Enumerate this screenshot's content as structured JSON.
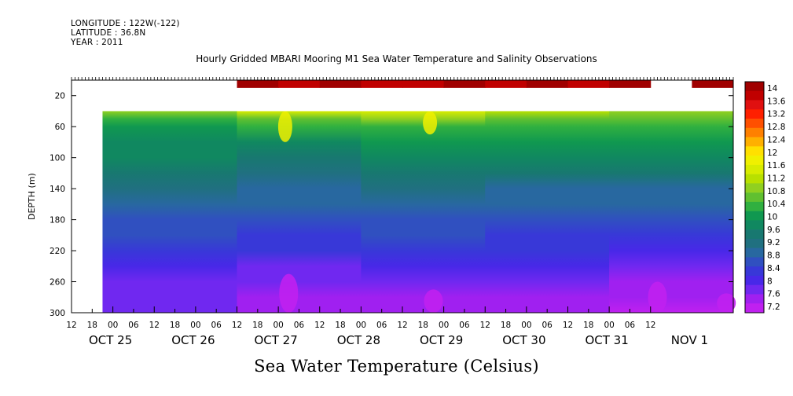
{
  "header": {
    "longitude": "LONGITUDE : 122W(-122)",
    "latitude": "LATITUDE : 36.8N",
    "year": "YEAR : 2011",
    "title": "Hourly Gridded MBARI Mooring M1 Sea Water Temperature and Salinity Observations",
    "bottom_title": "Sea Water Temperature (Celsius)"
  },
  "chart_data": {
    "type": "heatmap",
    "title": "Hourly Gridded MBARI Mooring M1 Sea Water Temperature and Salinity Observations",
    "ylabel": "DEPTH (m)",
    "xlabel": "",
    "colorbar_label": "Sea Water Temperature (Celsius)",
    "y_inverted": true,
    "ylim": [
      300,
      0
    ],
    "y_ticks": [
      20,
      60,
      100,
      140,
      180,
      220,
      260,
      300
    ],
    "hour_ticks": [
      "12",
      "18",
      "00",
      "06",
      "12",
      "18",
      "00",
      "06",
      "12",
      "18",
      "00",
      "06",
      "12",
      "18",
      "00",
      "06",
      "12",
      "18",
      "00",
      "06",
      "12",
      "18",
      "00",
      "06",
      "12",
      "18",
      "00",
      "06",
      "12"
    ],
    "date_labels": [
      "OCT 25",
      "OCT 26",
      "OCT 27",
      "OCT 28",
      "OCT 29",
      "OCT 30",
      "OCT 31",
      "NOV  1"
    ],
    "colorbar_ticks": [
      "14",
      "13.6",
      "13.2",
      "12.8",
      "12.4",
      "12",
      "11.6",
      "11.2",
      "10.8",
      "10.4",
      "10",
      "9.6",
      "9.2",
      "8.8",
      "8.4",
      "8",
      "7.6",
      "7.2"
    ],
    "colorbar_colors": [
      "#a00000",
      "#c00000",
      "#e01010",
      "#ff2000",
      "#ff5000",
      "#ff8000",
      "#ffb000",
      "#ffe000",
      "#f0f000",
      "#d8ec00",
      "#b8e000",
      "#90d020",
      "#60c030",
      "#30b040",
      "#109850",
      "#108860",
      "#187870",
      "#207080",
      "#2868a0",
      "#3050c0",
      "#3838d8",
      "#4828e8",
      "#7028f0",
      "#a020f0",
      "#c020f0"
    ],
    "x_range_hours": [
      -12,
      180
    ],
    "depth_levels": [
      10,
      40,
      50,
      60,
      80,
      100,
      120,
      140,
      160,
      180,
      200,
      220,
      240,
      260,
      280,
      300
    ],
    "surface_depth_range_m": [
      0,
      10
    ],
    "surface_series": {
      "hours": [
        36,
        48,
        60,
        72,
        84,
        96,
        108,
        120,
        132,
        144,
        156,
        168,
        180
      ],
      "temperature": [
        13.8,
        13.6,
        13.9,
        13.5,
        13.7,
        13.8,
        13.6,
        13.9,
        13.7,
        13.8,
        null,
        13.9,
        13.8
      ]
    },
    "deep_series": {
      "depth": [
        40,
        50,
        60,
        80,
        100,
        120,
        140,
        160,
        180,
        200,
        220,
        240,
        260,
        280,
        300
      ],
      "periods": [
        {
          "hours": [
            -3,
            36
          ],
          "temperature": [
            11.0,
            10.4,
            10.1,
            9.9,
            9.7,
            9.4,
            9.2,
            9.0,
            8.8,
            8.6,
            8.4,
            8.2,
            8.0,
            7.9,
            7.8
          ]
        },
        {
          "hours": [
            36,
            72
          ],
          "temperature": [
            11.3,
            10.6,
            10.2,
            9.9,
            9.6,
            9.3,
            9.1,
            8.9,
            8.7,
            8.5,
            8.3,
            8.0,
            7.8,
            7.6,
            7.5
          ]
        },
        {
          "hours": [
            72,
            108
          ],
          "temperature": [
            11.4,
            10.8,
            10.3,
            10.0,
            9.7,
            9.4,
            9.2,
            9.0,
            8.8,
            8.6,
            8.4,
            8.1,
            7.9,
            7.7,
            7.5
          ]
        },
        {
          "hours": [
            108,
            144
          ],
          "temperature": [
            11.2,
            10.7,
            10.3,
            10.0,
            9.7,
            9.4,
            9.1,
            8.9,
            8.7,
            8.5,
            8.3,
            8.1,
            7.9,
            7.7,
            7.6
          ]
        },
        {
          "hours": [
            144,
            180
          ],
          "temperature": [
            11.0,
            10.5,
            10.2,
            10.0,
            9.7,
            9.4,
            9.1,
            8.9,
            8.7,
            8.5,
            8.2,
            7.9,
            7.7,
            7.5,
            7.4
          ]
        }
      ]
    },
    "warm_pockets": [
      {
        "hour_center": 50,
        "depth_range": [
          40,
          80
        ],
        "temperature": 11.6
      },
      {
        "hour_center": 92,
        "depth_range": [
          40,
          70
        ],
        "temperature": 11.7
      }
    ],
    "cold_pockets": [
      {
        "hour_center": 51,
        "depth_range": [
          250,
          300
        ],
        "temperature": 7.3
      },
      {
        "hour_center": 93,
        "depth_range": [
          270,
          300
        ],
        "temperature": 7.4
      },
      {
        "hour_center": 126,
        "depth_range": [
          280,
          300
        ],
        "temperature": 7.5
      },
      {
        "hour_center": 158,
        "depth_range": [
          260,
          300
        ],
        "temperature": 7.3
      },
      {
        "hour_center": 178,
        "depth_range": [
          275,
          300
        ],
        "temperature": 7.4
      }
    ]
  }
}
